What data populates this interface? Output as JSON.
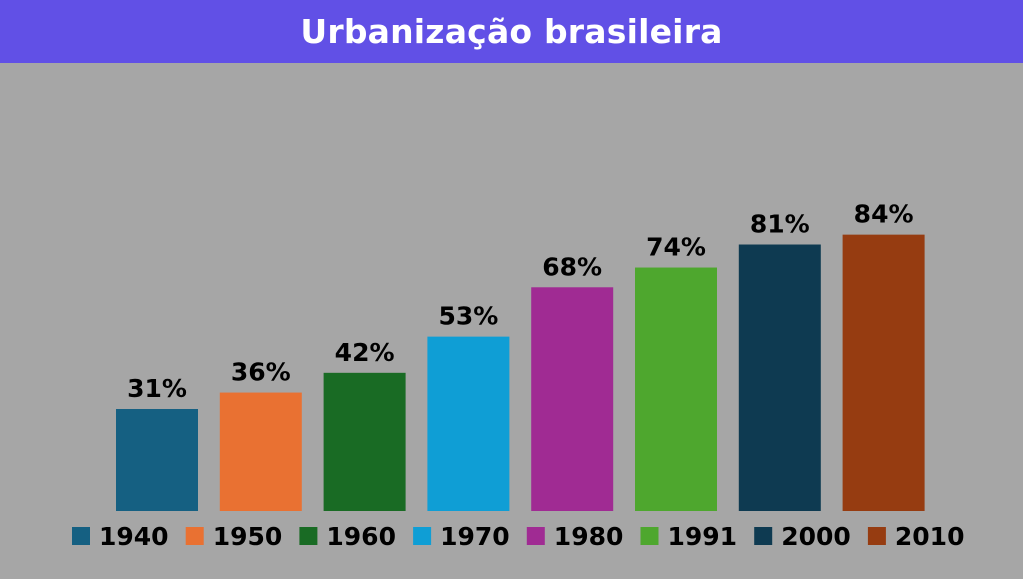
{
  "chart_data": {
    "type": "bar",
    "title": "Urbanização brasileira",
    "categories": [
      "1940",
      "1950",
      "1960",
      "1970",
      "1980",
      "1991",
      "2000",
      "2010"
    ],
    "values": [
      31,
      36,
      42,
      53,
      68,
      74,
      81,
      84
    ],
    "value_labels": [
      "31%",
      "36%",
      "42%",
      "53%",
      "68%",
      "74%",
      "81%",
      "84%"
    ],
    "colors": [
      "#156082",
      "#e97132",
      "#196b24",
      "#0f9ed5",
      "#a02b93",
      "#4ea72e",
      "#0e3a51",
      "#963c11"
    ],
    "ylim": [
      0,
      100
    ],
    "grid": false,
    "legend": "bottom",
    "background": "#a6a6a6",
    "title_bar_color": "#6150e6"
  }
}
